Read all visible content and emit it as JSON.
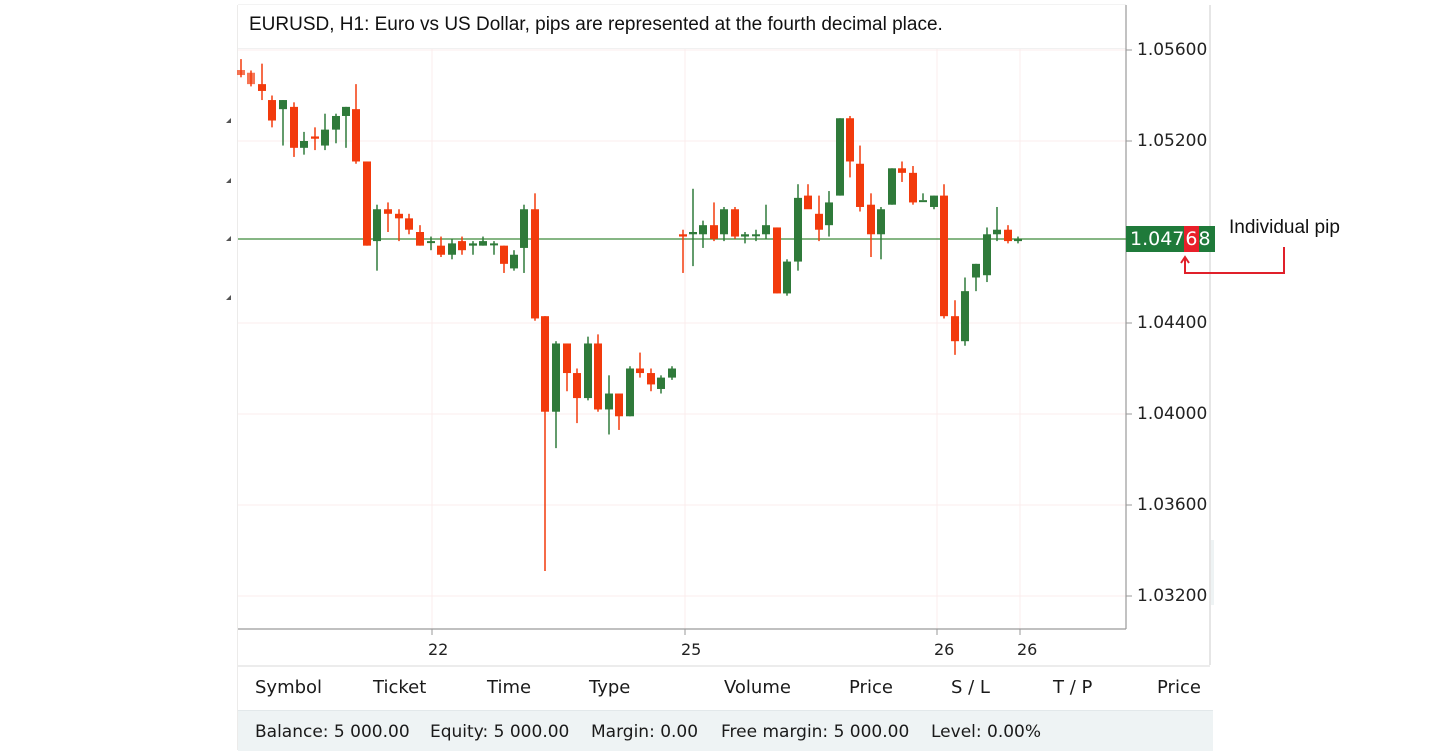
{
  "chart_title": "EURUSD, H1: Euro vs US Dollar, pips are represented at the fourth decimal place.",
  "current_price": {
    "prefix": "1.047",
    "pip_digit": "6",
    "suffix": "8",
    "value": 1.04768
  },
  "annotation": "Individual pip",
  "y_axis": {
    "labels": [
      "1.05600",
      "1.05200",
      "1.04400",
      "1.04000",
      "1.03600",
      "1.03200"
    ]
  },
  "x_axis": {
    "labels": [
      "22",
      "25",
      "26",
      "26"
    ]
  },
  "colors": {
    "up": "#2f7a3a",
    "down": "#f23a0c",
    "price_line": "#3d8a3a",
    "price_tag": "#1f7a3a",
    "pip_highlight": "#e8202a",
    "grid": "#fbecec"
  },
  "table_header": {
    "columns": [
      "Symbol",
      "Ticket",
      "Time",
      "Type",
      "Volume",
      "Price",
      "S / L",
      "T / P",
      "Price"
    ]
  },
  "account_footer": {
    "balance": "Balance: 5 000.00",
    "equity": "Equity: 5 000.00",
    "margin": "Margin: 0.00",
    "free_margin": "Free margin: 5 000.00",
    "level": "Level: 0.00%"
  },
  "chart_data": {
    "type": "candlestick",
    "title": "EURUSD, H1: Euro vs US Dollar, pips are represented at the fourth decimal place.",
    "xlabel": "",
    "ylabel": "",
    "ylim": [
      1.03,
      1.0575
    ],
    "y_ticks": [
      1.056,
      1.052,
      1.044,
      1.04,
      1.036,
      1.032
    ],
    "x_ticks": [
      "22",
      "25",
      "26",
      "26"
    ],
    "grid": true,
    "last_price": 1.04768,
    "candles": [
      {
        "x": 241,
        "o": 1.05512,
        "h": 1.0556,
        "l": 1.0548,
        "c": 1.0549
      },
      {
        "x": 251,
        "o": 1.055,
        "h": 1.0551,
        "l": 1.0544,
        "c": 1.0545
      },
      {
        "x": 262,
        "o": 1.0545,
        "h": 1.0554,
        "l": 1.0538,
        "c": 1.0542
      },
      {
        "x": 272,
        "o": 1.0538,
        "h": 1.054,
        "l": 1.0526,
        "c": 1.0529
      },
      {
        "x": 283,
        "o": 1.0534,
        "h": 1.0538,
        "l": 1.0518,
        "c": 1.0538
      },
      {
        "x": 294,
        "o": 1.0535,
        "h": 1.0537,
        "l": 1.0513,
        "c": 1.0517
      },
      {
        "x": 304,
        "o": 1.0517,
        "h": 1.0524,
        "l": 1.0514,
        "c": 1.052
      },
      {
        "x": 315,
        "o": 1.0522,
        "h": 1.0526,
        "l": 1.0516,
        "c": 1.0521
      },
      {
        "x": 325,
        "o": 1.0518,
        "h": 1.0532,
        "l": 1.0516,
        "c": 1.0525
      },
      {
        "x": 336,
        "o": 1.0525,
        "h": 1.0532,
        "l": 1.0519,
        "c": 1.0531
      },
      {
        "x": 346,
        "o": 1.0531,
        "h": 1.0535,
        "l": 1.0517,
        "c": 1.0535
      },
      {
        "x": 356,
        "o": 1.0534,
        "h": 1.0545,
        "l": 1.051,
        "c": 1.0511
      },
      {
        "x": 367,
        "o": 1.0511,
        "h": 1.0511,
        "l": 1.0474,
        "c": 1.0474
      },
      {
        "x": 377,
        "o": 1.0476,
        "h": 1.0492,
        "l": 1.0463,
        "c": 1.049
      },
      {
        "x": 388,
        "o": 1.049,
        "h": 1.0493,
        "l": 1.048,
        "c": 1.0488
      },
      {
        "x": 399,
        "o": 1.0488,
        "h": 1.049,
        "l": 1.0476,
        "c": 1.0486
      },
      {
        "x": 409,
        "o": 1.0486,
        "h": 1.0488,
        "l": 1.0479,
        "c": 1.0481
      },
      {
        "x": 420,
        "o": 1.048,
        "h": 1.0483,
        "l": 1.0474,
        "c": 1.0474
      },
      {
        "x": 431,
        "o": 1.0476,
        "h": 1.0478,
        "l": 1.0472,
        "c": 1.0476
      },
      {
        "x": 441,
        "o": 1.0474,
        "h": 1.0478,
        "l": 1.0469,
        "c": 1.047
      },
      {
        "x": 452,
        "o": 1.047,
        "h": 1.0477,
        "l": 1.0468,
        "c": 1.0475
      },
      {
        "x": 462,
        "o": 1.0476,
        "h": 1.0478,
        "l": 1.047,
        "c": 1.0472
      },
      {
        "x": 473,
        "o": 1.0474,
        "h": 1.0476,
        "l": 1.047,
        "c": 1.0475
      },
      {
        "x": 483,
        "o": 1.0474,
        "h": 1.0478,
        "l": 1.0474,
        "c": 1.0476
      },
      {
        "x": 494,
        "o": 1.0475,
        "h": 1.0476,
        "l": 1.047,
        "c": 1.0475
      },
      {
        "x": 504,
        "o": 1.0474,
        "h": 1.0474,
        "l": 1.0462,
        "c": 1.0466
      },
      {
        "x": 514,
        "o": 1.0464,
        "h": 1.0472,
        "l": 1.0463,
        "c": 1.047
      },
      {
        "x": 524,
        "o": 1.0473,
        "h": 1.0492,
        "l": 1.0462,
        "c": 1.049
      },
      {
        "x": 535,
        "o": 1.049,
        "h": 1.0497,
        "l": 1.0441,
        "c": 1.0442
      },
      {
        "x": 545,
        "o": 1.0443,
        "h": 1.0443,
        "l": 1.0331,
        "c": 1.0401
      },
      {
        "x": 556,
        "o": 1.0401,
        "h": 1.0432,
        "l": 1.0385,
        "c": 1.0431
      },
      {
        "x": 567,
        "o": 1.0431,
        "h": 1.0431,
        "l": 1.041,
        "c": 1.0418
      },
      {
        "x": 577,
        "o": 1.0418,
        "h": 1.042,
        "l": 1.0396,
        "c": 1.0407
      },
      {
        "x": 588,
        "o": 1.0407,
        "h": 1.0434,
        "l": 1.0406,
        "c": 1.0431
      },
      {
        "x": 598,
        "o": 1.0431,
        "h": 1.0435,
        "l": 1.0401,
        "c": 1.0402
      },
      {
        "x": 609,
        "o": 1.0402,
        "h": 1.0417,
        "l": 1.0391,
        "c": 1.0409
      },
      {
        "x": 619,
        "o": 1.0409,
        "h": 1.0409,
        "l": 1.0393,
        "c": 1.0399
      },
      {
        "x": 630,
        "o": 1.0399,
        "h": 1.0421,
        "l": 1.0399,
        "c": 1.042
      },
      {
        "x": 640,
        "o": 1.042,
        "h": 1.0427,
        "l": 1.0416,
        "c": 1.0418
      },
      {
        "x": 651,
        "o": 1.0418,
        "h": 1.042,
        "l": 1.041,
        "c": 1.0413
      },
      {
        "x": 661,
        "o": 1.0411,
        "h": 1.0417,
        "l": 1.0409,
        "c": 1.0416
      },
      {
        "x": 672,
        "o": 1.0416,
        "h": 1.0421,
        "l": 1.0415,
        "c": 1.042
      },
      {
        "x": 683,
        "o": 1.0479,
        "h": 1.0481,
        "l": 1.0462,
        "c": 1.0478
      },
      {
        "x": 693,
        "o": 1.0479,
        "h": 1.0499,
        "l": 1.0465,
        "c": 1.048
      },
      {
        "x": 703,
        "o": 1.0479,
        "h": 1.0485,
        "l": 1.0473,
        "c": 1.0483
      },
      {
        "x": 714,
        "o": 1.0483,
        "h": 1.0493,
        "l": 1.0476,
        "c": 1.0477
      },
      {
        "x": 724,
        "o": 1.0479,
        "h": 1.0491,
        "l": 1.0476,
        "c": 1.049
      },
      {
        "x": 735,
        "o": 1.049,
        "h": 1.0491,
        "l": 1.0477,
        "c": 1.0478
      },
      {
        "x": 745,
        "o": 1.0478,
        "h": 1.048,
        "l": 1.0475,
        "c": 1.0479
      },
      {
        "x": 756,
        "o": 1.0479,
        "h": 1.0481,
        "l": 1.0476,
        "c": 1.0479
      },
      {
        "x": 766,
        "o": 1.0479,
        "h": 1.0492,
        "l": 1.0477,
        "c": 1.0483
      },
      {
        "x": 777,
        "o": 1.0482,
        "h": 1.0482,
        "l": 1.0453,
        "c": 1.0453
      },
      {
        "x": 787,
        "o": 1.0453,
        "h": 1.0468,
        "l": 1.0452,
        "c": 1.0467
      },
      {
        "x": 798,
        "o": 1.0467,
        "h": 1.0501,
        "l": 1.0463,
        "c": 1.0495
      },
      {
        "x": 808,
        "o": 1.0496,
        "h": 1.0501,
        "l": 1.0491,
        "c": 1.049
      },
      {
        "x": 819,
        "o": 1.0488,
        "h": 1.0496,
        "l": 1.0476,
        "c": 1.0481
      },
      {
        "x": 829,
        "o": 1.0483,
        "h": 1.0498,
        "l": 1.0478,
        "c": 1.0493
      },
      {
        "x": 840,
        "o": 1.0496,
        "h": 1.053,
        "l": 1.0496,
        "c": 1.053
      },
      {
        "x": 850,
        "o": 1.053,
        "h": 1.0531,
        "l": 1.0504,
        "c": 1.0511
      },
      {
        "x": 860,
        "o": 1.051,
        "h": 1.0518,
        "l": 1.0489,
        "c": 1.0491
      },
      {
        "x": 871,
        "o": 1.0492,
        "h": 1.0497,
        "l": 1.0469,
        "c": 1.0479
      },
      {
        "x": 881,
        "o": 1.0479,
        "h": 1.0491,
        "l": 1.0468,
        "c": 1.049
      },
      {
        "x": 892,
        "o": 1.0492,
        "h": 1.0508,
        "l": 1.0492,
        "c": 1.0508
      },
      {
        "x": 902,
        "o": 1.0508,
        "h": 1.0511,
        "l": 1.0502,
        "c": 1.0506
      },
      {
        "x": 913,
        "o": 1.0506,
        "h": 1.0509,
        "l": 1.0492,
        "c": 1.0493
      },
      {
        "x": 923,
        "o": 1.0494,
        "h": 1.0497,
        "l": 1.0494,
        "c": 1.0494
      },
      {
        "x": 934,
        "o": 1.0491,
        "h": 1.0496,
        "l": 1.049,
        "c": 1.0496
      },
      {
        "x": 944,
        "o": 1.0496,
        "h": 1.0501,
        "l": 1.0442,
        "c": 1.0443
      },
      {
        "x": 955,
        "o": 1.0443,
        "h": 1.045,
        "l": 1.0426,
        "c": 1.0432
      },
      {
        "x": 965,
        "o": 1.0432,
        "h": 1.046,
        "l": 1.043,
        "c": 1.0454
      },
      {
        "x": 976,
        "o": 1.046,
        "h": 1.0466,
        "l": 1.0454,
        "c": 1.0466
      },
      {
        "x": 987,
        "o": 1.0461,
        "h": 1.0482,
        "l": 1.0458,
        "c": 1.0479
      },
      {
        "x": 997,
        "o": 1.0479,
        "h": 1.0491,
        "l": 1.0476,
        "c": 1.0481
      },
      {
        "x": 1008,
        "o": 1.0481,
        "h": 1.0483,
        "l": 1.0475,
        "c": 1.0476
      },
      {
        "x": 1018,
        "o": 1.0476,
        "h": 1.0478,
        "l": 1.0475,
        "c": 1.0477
      }
    ]
  }
}
